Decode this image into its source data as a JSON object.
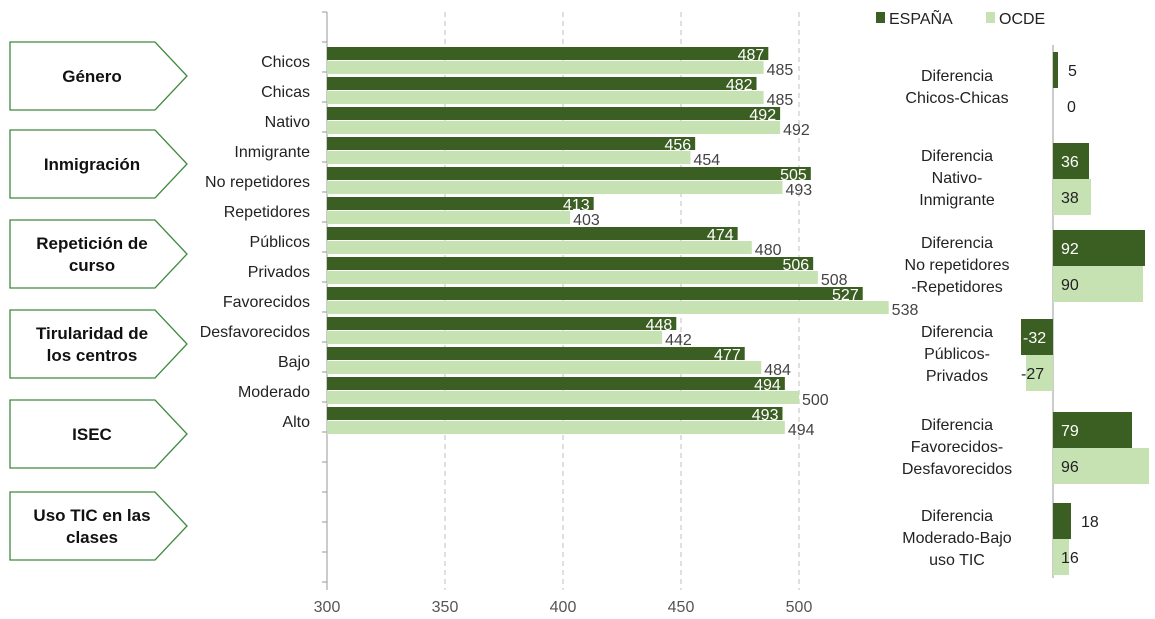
{
  "colors": {
    "espana": "#3b5e22",
    "ocde": "#c6e2b3",
    "grid": "#bfbfbf",
    "arrow_border": "#3f8a3f"
  },
  "legend": {
    "espana": "ESPAÑA",
    "ocde": "OCDE"
  },
  "chart_data": [
    {
      "type": "bar",
      "orientation": "horizontal",
      "xlim": [
        300,
        540
      ],
      "x_ticks": [
        "300",
        "350",
        "400",
        "450",
        "500"
      ],
      "grid": "vertical dashed",
      "legend_position": "top-right",
      "groups": [
        {
          "category": "Género",
          "rows": [
            {
              "label": "Chicos",
              "espana": 487,
              "ocde": 485
            },
            {
              "label": "Chicas",
              "espana": 482,
              "ocde": 485
            }
          ]
        },
        {
          "category": "Inmigración",
          "rows": [
            {
              "label": "Nativo",
              "espana": 492,
              "ocde": 492
            },
            {
              "label": "Inmigrante",
              "espana": 456,
              "ocde": 454
            }
          ]
        },
        {
          "category": "Repetición de curso",
          "rows": [
            {
              "label": "No repetidores",
              "espana": 505,
              "ocde": 493
            },
            {
              "label": "Repetidores",
              "espana": 413,
              "ocde": 403
            }
          ]
        },
        {
          "category": "Tirularidad de los centros",
          "rows": [
            {
              "label": "Públicos",
              "espana": 474,
              "ocde": 480
            },
            {
              "label": "Privados",
              "espana": 506,
              "ocde": 508
            }
          ]
        },
        {
          "category": "ISEC",
          "rows": [
            {
              "label": "Favorecidos",
              "espana": 527,
              "ocde": 538
            },
            {
              "label": "Desfavorecidos",
              "espana": 448,
              "ocde": 442
            }
          ]
        },
        {
          "category": "Uso TIC en las clases",
          "rows": [
            {
              "label": "Bajo",
              "espana": 477,
              "ocde": 484
            },
            {
              "label": "Moderado",
              "espana": 494,
              "ocde": 500
            },
            {
              "label": "Alto",
              "espana": 493,
              "ocde": 494
            }
          ]
        }
      ]
    },
    {
      "type": "bar",
      "orientation": "horizontal",
      "xlim": [
        -40,
        100
      ],
      "groups": [
        {
          "label": "Diferencia Chicos-Chicas",
          "espana": 5,
          "ocde": 0
        },
        {
          "label": "Diferencia Nativo-Inmigrante",
          "espana": 36,
          "ocde": 38
        },
        {
          "label": "Diferencia No repetidores -Repetidores",
          "espana": 92,
          "ocde": 90
        },
        {
          "label": "Diferencia Públicos-Privados",
          "espana": -32,
          "ocde": -27
        },
        {
          "label": "Diferencia Favorecidos-Desfavorecidos",
          "espana": 79,
          "ocde": 96
        },
        {
          "label": "Diferencia Moderado-Bajo uso TIC",
          "espana": 18,
          "ocde": 16
        }
      ]
    }
  ]
}
